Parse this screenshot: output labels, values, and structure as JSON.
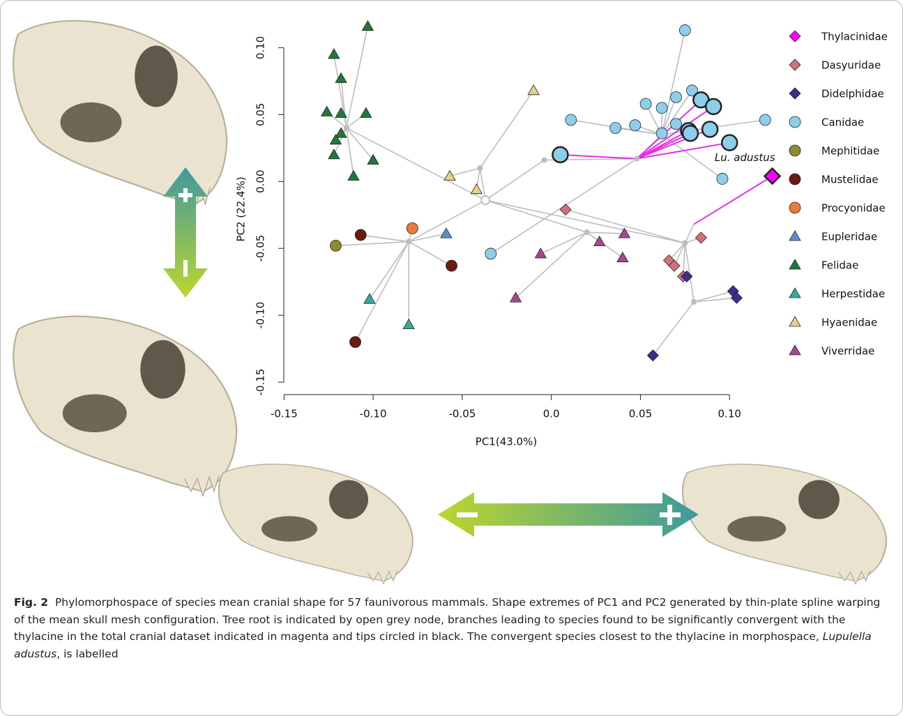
{
  "chart_data": {
    "type": "scatter",
    "xlabel": "PC1(43.0%)",
    "ylabel": "PC2 (22.4%)",
    "xlim": [
      -0.156,
      0.168
    ],
    "ylim": [
      -0.152,
      0.12
    ],
    "xticks": [
      -0.15,
      {
        "value": -0.1,
        "label": "-0.10"
      },
      -0.05,
      {
        "value": 0,
        "label": "0.0"
      },
      0.05,
      {
        "value": 0.1,
        "label": "0.10"
      }
    ],
    "yticks": [
      -0.15,
      {
        "value": -0.1,
        "label": "-0.10"
      },
      -0.05,
      {
        "value": 0,
        "label": "0.00"
      },
      0.05,
      {
        "value": 0.1,
        "label": "0.10"
      }
    ],
    "annotation": "Lu. adustus",
    "root": [
      -0.037,
      -0.014
    ],
    "branches": {
      "color": "#bdbdbd",
      "segments": [
        [
          -0.115,
          0.04,
          -0.103,
          0.116
        ],
        [
          -0.115,
          0.04,
          -0.122,
          0.095
        ],
        [
          -0.115,
          0.04,
          -0.118,
          0.077
        ],
        [
          -0.115,
          0.04,
          -0.126,
          0.052
        ],
        [
          -0.115,
          0.04,
          -0.104,
          0.051
        ],
        [
          -0.115,
          0.04,
          -0.121,
          0.031
        ],
        [
          -0.115,
          0.04,
          -0.122,
          0.02
        ],
        [
          -0.115,
          0.04,
          -0.1,
          0.016
        ],
        [
          -0.115,
          0.04,
          -0.111,
          0.004
        ],
        [
          -0.115,
          0.04,
          -0.037,
          -0.014
        ],
        [
          0.062,
          0.035,
          0.075,
          0.113
        ],
        [
          0.062,
          0.035,
          0.011,
          0.046
        ],
        [
          0.062,
          0.035,
          0.036,
          0.04
        ],
        [
          0.062,
          0.035,
          0.047,
          0.042
        ],
        [
          0.062,
          0.035,
          0.053,
          0.058
        ],
        [
          0.062,
          0.035,
          0.062,
          0.055
        ],
        [
          0.062,
          0.035,
          0.07,
          0.063
        ],
        [
          0.062,
          0.035,
          0.079,
          0.068
        ],
        [
          0.062,
          0.035,
          0.12,
          0.046
        ],
        [
          0.062,
          0.035,
          0.096,
          0.002
        ],
        [
          0.048,
          0.017,
          0.062,
          0.035
        ],
        [
          0.048,
          0.017,
          -0.034,
          -0.054
        ],
        [
          -0.037,
          -0.014,
          -0.004,
          0.016
        ],
        [
          -0.004,
          0.016,
          0.048,
          0.017
        ],
        [
          0.075,
          -0.046,
          0.008,
          -0.021
        ],
        [
          0.075,
          -0.046,
          0.084,
          -0.042
        ],
        [
          0.075,
          -0.046,
          0.066,
          -0.059
        ],
        [
          0.075,
          -0.046,
          0.069,
          -0.063
        ],
        [
          0.075,
          -0.046,
          0.074,
          -0.071
        ],
        [
          0.075,
          -0.046,
          0.08,
          -0.09
        ],
        [
          0.08,
          -0.09,
          0.102,
          -0.082
        ],
        [
          0.08,
          -0.09,
          0.104,
          -0.087
        ],
        [
          0.08,
          -0.09,
          0.057,
          -0.13
        ],
        [
          0.075,
          -0.046,
          0.08,
          -0.032
        ],
        [
          0.075,
          -0.046,
          -0.037,
          -0.014
        ],
        [
          0.02,
          -0.038,
          -0.006,
          -0.054
        ],
        [
          0.02,
          -0.038,
          -0.02,
          -0.087
        ],
        [
          0.02,
          -0.038,
          0.027,
          -0.045
        ],
        [
          0.02,
          -0.038,
          0.041,
          -0.039
        ],
        [
          0.02,
          -0.038,
          0.04,
          -0.057
        ],
        [
          0.02,
          -0.038,
          -0.037,
          -0.014
        ],
        [
          -0.08,
          -0.045,
          -0.121,
          -0.048
        ],
        [
          -0.08,
          -0.045,
          -0.107,
          -0.04
        ],
        [
          -0.08,
          -0.045,
          -0.056,
          -0.063
        ],
        [
          -0.08,
          -0.045,
          -0.11,
          -0.12
        ],
        [
          -0.08,
          -0.045,
          -0.078,
          -0.035
        ],
        [
          -0.08,
          -0.045,
          -0.059,
          -0.039
        ],
        [
          -0.08,
          -0.045,
          -0.102,
          -0.088
        ],
        [
          -0.08,
          -0.045,
          -0.08,
          -0.107
        ],
        [
          -0.08,
          -0.045,
          -0.037,
          -0.014
        ],
        [
          -0.04,
          0.01,
          -0.01,
          0.068
        ],
        [
          -0.04,
          0.01,
          -0.057,
          0.004
        ],
        [
          -0.04,
          0.01,
          -0.042,
          -0.006
        ],
        [
          -0.04,
          0.01,
          -0.037,
          -0.014
        ]
      ]
    },
    "convergent_branches": {
      "color": "#e62ee6",
      "segments": [
        [
          0.08,
          -0.032,
          0.124,
          0.004
        ],
        [
          0.048,
          0.017,
          0.005,
          0.02
        ],
        [
          0.048,
          0.017,
          0.084,
          0.061
        ],
        [
          0.048,
          0.017,
          0.091,
          0.056
        ],
        [
          0.048,
          0.017,
          0.077,
          0.038
        ],
        [
          0.048,
          0.017,
          0.078,
          0.036
        ],
        [
          0.048,
          0.017,
          0.089,
          0.039
        ],
        [
          0.048,
          0.017,
          0.1,
          0.029
        ]
      ]
    },
    "series": [
      {
        "name": "Thylacinidae",
        "marker": "diamond",
        "color": "#ff00ff",
        "x": [
          0.124
        ],
        "y": [
          0.004
        ],
        "outline": [
          true
        ]
      },
      {
        "name": "Dasyuridae",
        "marker": "diamond",
        "color": "#d46f7a",
        "x": [
          0.008,
          0.084,
          0.066,
          0.069,
          0.074
        ],
        "y": [
          -0.021,
          -0.042,
          -0.059,
          -0.063,
          -0.071
        ]
      },
      {
        "name": "Didelphidae",
        "marker": "diamond",
        "color": "#3b2e8f",
        "x": [
          0.076,
          0.102,
          0.104,
          0.057
        ],
        "y": [
          -0.071,
          -0.082,
          -0.087,
          -0.13
        ]
      },
      {
        "name": "Canidae",
        "marker": "circle",
        "color": "#8dcfea",
        "x": [
          0.075,
          0.011,
          0.036,
          0.047,
          0.053,
          0.062,
          0.07,
          0.079,
          0.062,
          0.07,
          0.12,
          0.096,
          -0.034,
          0.005,
          0.084,
          0.091,
          0.077,
          0.078,
          0.089,
          0.1
        ],
        "y": [
          0.113,
          0.046,
          0.04,
          0.042,
          0.058,
          0.055,
          0.063,
          0.068,
          0.036,
          0.043,
          0.046,
          0.002,
          -0.054,
          0.02,
          0.061,
          0.056,
          0.038,
          0.036,
          0.039,
          0.029
        ],
        "outline": [
          false,
          false,
          false,
          false,
          false,
          false,
          false,
          false,
          false,
          false,
          false,
          false,
          false,
          true,
          true,
          true,
          true,
          true,
          true,
          true
        ]
      },
      {
        "name": "Mephitidae",
        "marker": "circle",
        "color": "#8f8a2b",
        "x": [
          -0.121
        ],
        "y": [
          -0.048
        ]
      },
      {
        "name": "Mustelidae",
        "marker": "circle",
        "color": "#6b1a10",
        "x": [
          -0.107,
          -0.056,
          -0.11
        ],
        "y": [
          -0.04,
          -0.063,
          -0.12
        ]
      },
      {
        "name": "Procyonidae",
        "marker": "circle",
        "color": "#ec7a38",
        "x": [
          -0.078
        ],
        "y": [
          -0.035
        ]
      },
      {
        "name": "Eupleridae",
        "marker": "triangle",
        "color": "#5b8fd0",
        "x": [
          -0.059
        ],
        "y": [
          -0.039
        ]
      },
      {
        "name": "Felidae",
        "marker": "triangle",
        "color": "#1f7a3a",
        "x": [
          -0.103,
          -0.122,
          -0.118,
          -0.126,
          -0.118,
          -0.104,
          -0.118,
          -0.121,
          -0.122,
          -0.1,
          -0.111
        ],
        "y": [
          0.116,
          0.095,
          0.077,
          0.052,
          0.051,
          0.051,
          0.036,
          0.031,
          0.02,
          0.016,
          0.004
        ]
      },
      {
        "name": "Herpestidae",
        "marker": "triangle",
        "color": "#3aa899",
        "x": [
          -0.102,
          -0.08
        ],
        "y": [
          -0.088,
          -0.107
        ]
      },
      {
        "name": "Hyaenidae",
        "marker": "triangle",
        "color": "#e2d28a",
        "x": [
          -0.01,
          -0.057,
          -0.042
        ],
        "y": [
          0.068,
          0.004,
          -0.006
        ]
      },
      {
        "name": "Viverridae",
        "marker": "triangle",
        "color": "#a8468f",
        "x": [
          -0.006,
          -0.02,
          0.027,
          0.041,
          0.04
        ],
        "y": [
          -0.054,
          -0.087,
          -0.045,
          -0.039,
          -0.057
        ]
      }
    ]
  },
  "caption": {
    "label": "Fig. 2",
    "text": "Phylomorphospace of species mean cranial shape for 57 faunivorous mammals. Shape extremes of PC1 and PC2 generated by thin-plate spline warping of the mean skull mesh configuration. Tree root is indicated by open grey node, branches leading to species found to be significantly convergent with the thylacine in the total cranial dataset indicated in magenta and tips circled in black. The convergent species closest to the thylacine in morphospace, ",
    "species": "Lupulella adustus",
    "end": ", is labelled"
  }
}
